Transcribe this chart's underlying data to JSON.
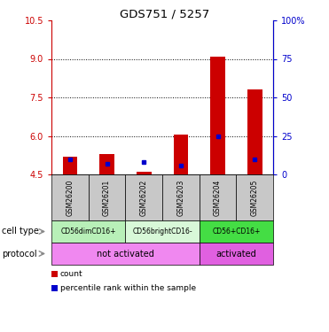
{
  "title": "GDS751 / 5257",
  "samples": [
    "GSM26200",
    "GSM26201",
    "GSM26202",
    "GSM26203",
    "GSM26204",
    "GSM26205"
  ],
  "red_bar_bottom": [
    4.5,
    4.5,
    4.5,
    4.5,
    4.5,
    4.5
  ],
  "red_bar_top": [
    5.2,
    5.3,
    4.6,
    6.05,
    9.1,
    7.8
  ],
  "blue_dot_y": [
    5.1,
    4.9,
    5.0,
    4.85,
    6.0,
    5.1
  ],
  "ylim": [
    4.5,
    10.5
  ],
  "y_ticks_left": [
    4.5,
    6.0,
    7.5,
    9.0,
    10.5
  ],
  "y_ticks_right": [
    0,
    25,
    50,
    75,
    100
  ],
  "y_ticks_right_labels": [
    "0",
    "25",
    "50",
    "75",
    "100%"
  ],
  "left_color": "#cc0000",
  "right_color": "#0000cc",
  "bar_color": "#cc0000",
  "dot_color": "#0000cc",
  "cell_types": [
    {
      "label": "CD56dimCD16+",
      "span": [
        0,
        2
      ],
      "color": "#b8f0b8"
    },
    {
      "label": "CD56brightCD16-",
      "span": [
        2,
        4
      ],
      "color": "#d8f8d8"
    },
    {
      "label": "CD56+CD16+",
      "span": [
        4,
        6
      ],
      "color": "#44dd44"
    }
  ],
  "protocols": [
    {
      "label": "not activated",
      "span": [
        0,
        4
      ],
      "color": "#f088f0"
    },
    {
      "label": "activated",
      "span": [
        4,
        6
      ],
      "color": "#e060e0"
    }
  ],
  "sample_box_color": "#c8c8c8",
  "legend_items": [
    {
      "label": "count",
      "color": "#cc0000"
    },
    {
      "label": "percentile rank within the sample",
      "color": "#0000cc"
    }
  ]
}
